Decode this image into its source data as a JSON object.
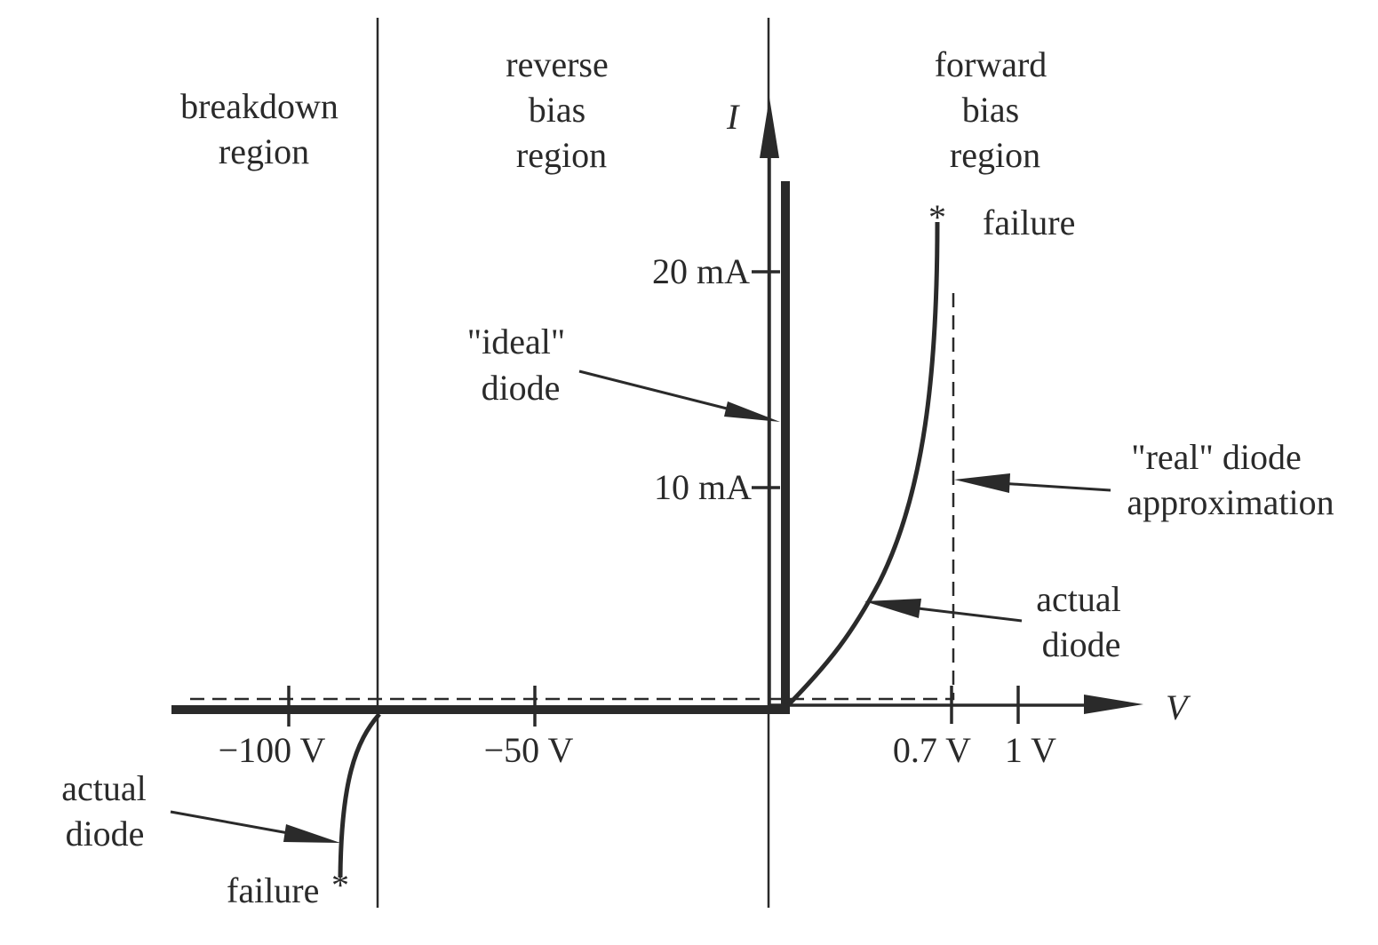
{
  "regions": {
    "breakdown": [
      "breakdown",
      "region"
    ],
    "reverse": [
      "reverse",
      "bias",
      "region"
    ],
    "forward": [
      "forward",
      "bias",
      "region"
    ]
  },
  "axes": {
    "y_label": "I",
    "x_label": "V",
    "y_ticks": [
      "20 mA",
      "10 mA"
    ],
    "x_ticks": [
      "−100 V",
      "−50 V",
      "0.7 V",
      "1 V"
    ]
  },
  "labels": {
    "failure_forward": "failure",
    "failure_marker_forward": "*",
    "failure_reverse": "failure",
    "failure_marker_reverse": "*",
    "ideal_diode": [
      "\"ideal\"",
      "diode"
    ],
    "real_diode": [
      "\"real\" diode",
      "approximation"
    ],
    "actual_diode_forward": [
      "actual",
      "diode"
    ],
    "actual_diode_reverse": [
      "actual",
      "diode"
    ]
  }
}
